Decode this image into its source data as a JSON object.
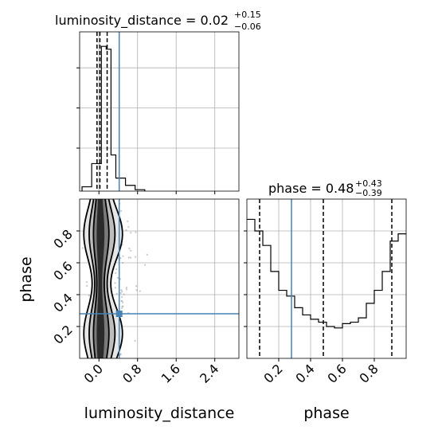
{
  "chart_data": {
    "type": "corner",
    "parameters": [
      "luminosity_distance",
      "phase"
    ],
    "truth": {
      "luminosity_distance": 0.42,
      "phase": 0.28
    },
    "panels": [
      {
        "id": "hist_luminosity_distance",
        "type": "histogram",
        "title": {
          "prefix": "luminosity_distance = 0.02",
          "plus": "+0.15",
          "minus": "−0.06"
        },
        "xlim": [
          -0.4,
          2.9
        ],
        "xticks": [
          0.0,
          0.8,
          1.6,
          2.4
        ],
        "quantiles": [
          -0.04,
          0.02,
          0.17
        ],
        "truth": 0.42,
        "bins": [
          -0.35,
          -0.15,
          0.05,
          0.15,
          0.25,
          0.35,
          0.55,
          0.75,
          0.95
        ],
        "counts": [
          0.03,
          0.19,
          1.0,
          0.98,
          0.25,
          0.09,
          0.04,
          0.01
        ],
        "grid": true
      },
      {
        "id": "hist_phase",
        "type": "histogram",
        "title": {
          "prefix": "phase = 0.48",
          "plus": "+0.43",
          "minus": "−0.39"
        },
        "xlim": [
          0.0,
          1.0
        ],
        "xticks": [
          0.2,
          0.4,
          0.6,
          0.8
        ],
        "quantiles": [
          0.08,
          0.48,
          0.91
        ],
        "truth": 0.28,
        "bins": [
          0.0,
          0.05,
          0.1,
          0.15,
          0.2,
          0.25,
          0.3,
          0.35,
          0.4,
          0.45,
          0.5,
          0.55,
          0.6,
          0.65,
          0.7,
          0.75,
          0.8,
          0.85,
          0.9,
          0.95,
          1.0
        ],
        "counts": [
          0.96,
          0.88,
          0.78,
          0.6,
          0.47,
          0.43,
          0.35,
          0.3,
          0.27,
          0.25,
          0.22,
          0.21,
          0.24,
          0.25,
          0.28,
          0.38,
          0.47,
          0.6,
          0.81,
          0.86
        ],
        "grid": true
      },
      {
        "id": "scatter_phase_vs_distance",
        "type": "scatter",
        "xlabel": "luminosity_distance",
        "ylabel": "phase",
        "xlim": [
          -0.4,
          2.9
        ],
        "ylim": [
          0.0,
          1.0
        ],
        "xticks": [
          0.0,
          0.8,
          1.6,
          2.4
        ],
        "yticks": [
          0.2,
          0.4,
          0.6,
          0.8
        ],
        "truth": [
          0.42,
          0.28
        ],
        "grid": true
      }
    ],
    "bottom_right_xlabel": "phase"
  },
  "colors": {
    "truth": "#4682b4",
    "hist": "#000000",
    "grid": "#b0b0b0",
    "points": "#9a9a9a",
    "axes": "#000000"
  }
}
